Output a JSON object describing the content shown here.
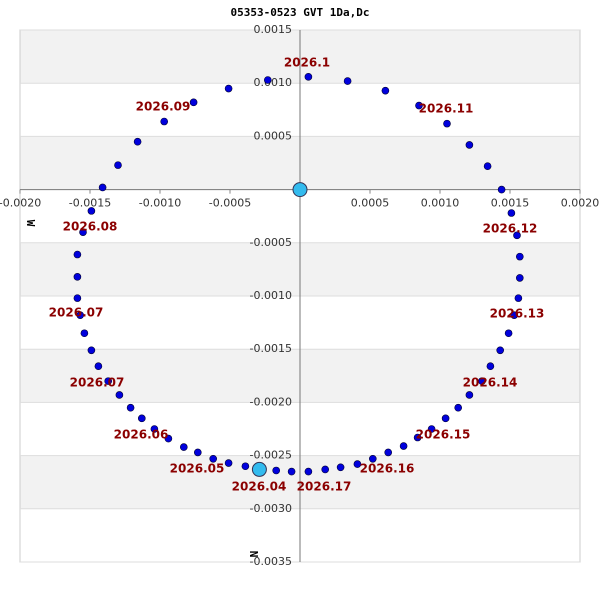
{
  "chart_data": {
    "type": "scatter",
    "title": "05353-0523 GVT   1Da,Dc",
    "xlabel": "W",
    "ylabel": "N",
    "xlim": [
      -0.002,
      0.002
    ],
    "ylim": [
      -0.0035,
      0.0015
    ],
    "xticks": [
      {
        "value": -0.002,
        "label": "-0.0020"
      },
      {
        "value": -0.0015,
        "label": "-0.0015"
      },
      {
        "value": -0.001,
        "label": "-0.0010"
      },
      {
        "value": -0.0005,
        "label": "-0.0005"
      },
      {
        "value": 0.0005,
        "label": "0.0005"
      },
      {
        "value": 0.001,
        "label": "0.0010"
      },
      {
        "value": 0.0015,
        "label": "0.0015"
      },
      {
        "value": 0.002,
        "label": "0.0020"
      }
    ],
    "yticks": [
      {
        "value": 0.0015,
        "label": "0.0015"
      },
      {
        "value": 0.001,
        "label": "0.0010"
      },
      {
        "value": 0.0005,
        "label": "0.0005"
      },
      {
        "value": -0.0005,
        "label": "-0.0005"
      },
      {
        "value": -0.001,
        "label": "-0.0010"
      },
      {
        "value": -0.0015,
        "label": "-0.0015"
      },
      {
        "value": -0.002,
        "label": "-0.0020"
      },
      {
        "value": -0.0025,
        "label": "-0.0025"
      },
      {
        "value": -0.003,
        "label": "-0.0030"
      },
      {
        "value": -0.0035,
        "label": "-0.0035"
      }
    ],
    "series": [
      {
        "color": "#0000dd",
        "x": [
          6e-05,
          0.00034,
          0.00061,
          0.00085,
          0.00105,
          0.00121,
          0.00134,
          0.00144,
          0.00151,
          0.00155,
          0.00157,
          0.00157,
          0.00156,
          0.00153,
          0.00149,
          0.00143,
          0.00136,
          0.0013,
          0.00121,
          0.00113,
          0.00104,
          0.00094,
          0.00084,
          0.00074,
          0.00063,
          0.00052,
          0.00041,
          0.00029,
          0.00018,
          6e-05,
          -6e-05,
          -0.00017,
          -0.00039,
          -0.00051,
          -0.00062,
          -0.00073,
          -0.00083,
          -0.00094,
          -0.00104,
          -0.00113,
          -0.00121,
          -0.00129,
          -0.00137,
          -0.00144,
          -0.00149,
          -0.00154,
          -0.00157,
          -0.00159,
          -0.00159,
          -0.00159,
          -0.00155,
          -0.00149,
          -0.00141,
          -0.0013,
          -0.00116,
          -0.00097,
          -0.00076,
          -0.00051,
          -0.00023
        ],
        "values": [
          0.00106,
          0.00102,
          0.00093,
          0.00079,
          0.00062,
          0.00042,
          0.00022,
          0.0,
          -0.00022,
          -0.00043,
          -0.00063,
          -0.00083,
          -0.00102,
          -0.00118,
          -0.00135,
          -0.00151,
          -0.00166,
          -0.0018,
          -0.00193,
          -0.00205,
          -0.00215,
          -0.00225,
          -0.00233,
          -0.00241,
          -0.00247,
          -0.00253,
          -0.00258,
          -0.00261,
          -0.00263,
          -0.00265,
          -0.00265,
          -0.00264,
          -0.0026,
          -0.00257,
          -0.00253,
          -0.00247,
          -0.00242,
          -0.00234,
          -0.00225,
          -0.00215,
          -0.00205,
          -0.00193,
          -0.0018,
          -0.00166,
          -0.00151,
          -0.00135,
          -0.00118,
          -0.00102,
          -0.00082,
          -0.00061,
          -0.0004,
          -0.0002,
          2e-05,
          0.00023,
          0.00045,
          0.00064,
          0.00082,
          0.00095,
          0.00103
        ]
      },
      {
        "color": "#33bbee",
        "x": [
          0.0,
          -0.00029
        ],
        "values": [
          0.0,
          -0.00263
        ]
      }
    ],
    "annotations": [
      "2026.1",
      "2026.09",
      "2026.11",
      "2026.08",
      "2026.12",
      "2026.07",
      "2026.13",
      "2026.07",
      "2026.14",
      "2026.06",
      "2026.15",
      "2026.05",
      "2026.16",
      "2026.04",
      "2026.17"
    ]
  }
}
